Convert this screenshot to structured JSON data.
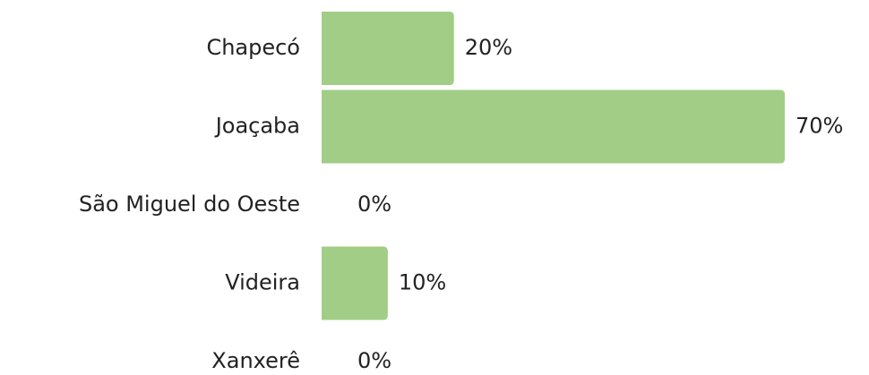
{
  "chart_data": {
    "type": "barh",
    "categories": [
      "Chapecó",
      "Joaçaba",
      "São Miguel do Oeste",
      "Videira",
      "Xanxerê"
    ],
    "values": [
      20,
      70,
      0,
      10,
      0
    ],
    "value_labels": [
      "20%",
      "70%",
      "0%",
      "10%",
      "0%"
    ],
    "color": "#a1cd86"
  }
}
